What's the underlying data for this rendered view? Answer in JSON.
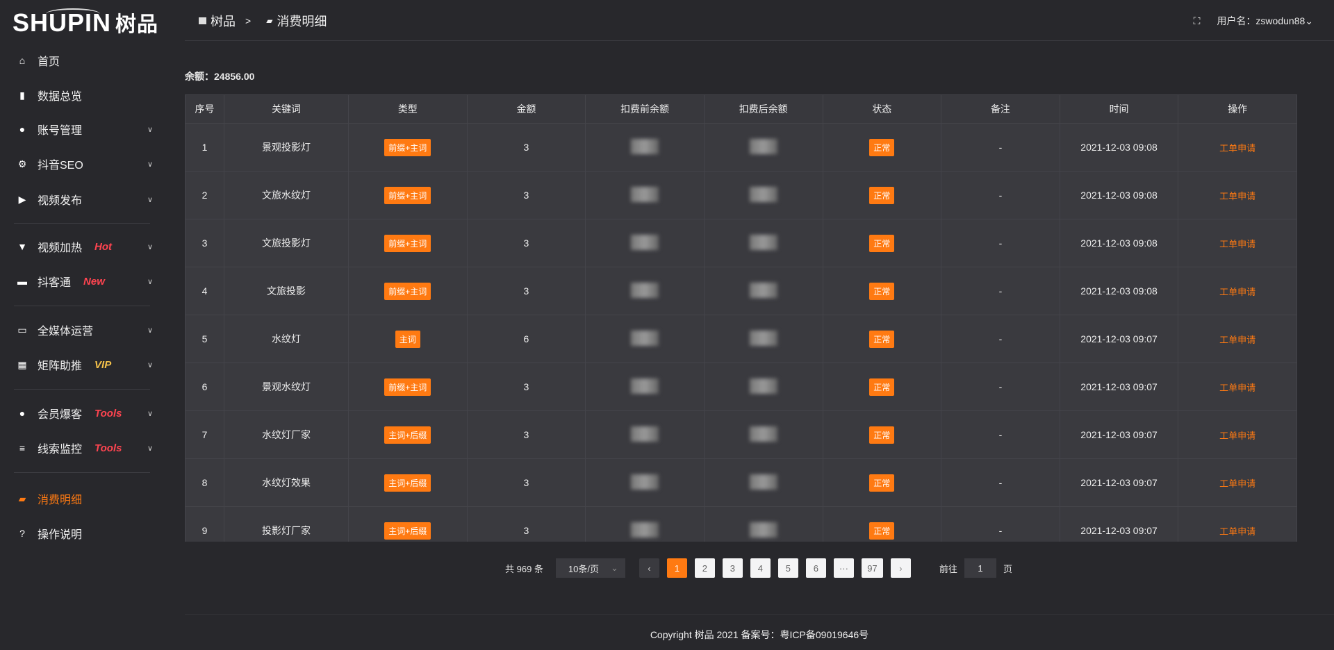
{
  "logo": {
    "text": "SHUPIN",
    "cn": "树品"
  },
  "sidebar": {
    "items": [
      {
        "label": "首页",
        "icon": "home-icon",
        "tag": "",
        "tag_color": ""
      },
      {
        "label": "数据总览",
        "icon": "bar-chart-icon",
        "tag": "",
        "tag_color": ""
      },
      {
        "label": "账号管理",
        "icon": "user-icon",
        "tag": "",
        "tag_color": ""
      },
      {
        "label": "抖音SEO",
        "icon": "gear-icon",
        "tag": "",
        "tag_color": ""
      },
      {
        "label": "视频发布",
        "icon": "video-icon",
        "tag": "",
        "tag_color": ""
      },
      {
        "label": "视频加热",
        "icon": "banner-icon",
        "tag": "Hot",
        "tag_color": "#ff4450"
      },
      {
        "label": "抖客通",
        "icon": "chat-icon",
        "tag": "New",
        "tag_color": "#ff4450"
      },
      {
        "label": "全媒体运营",
        "icon": "monitor-icon",
        "tag": "",
        "tag_color": ""
      },
      {
        "label": "矩阵助推",
        "icon": "grid-icon",
        "tag": "VIP",
        "tag_color": "#f5c24a"
      },
      {
        "label": "会员爆客",
        "icon": "user-icon",
        "tag": "Tools",
        "tag_color": "#ff4450"
      },
      {
        "label": "线索监控",
        "icon": "sliders-icon",
        "tag": "Tools",
        "tag_color": "#ff4450"
      },
      {
        "label": "消费明细",
        "icon": "wallet-icon",
        "tag": "",
        "tag_color": ""
      },
      {
        "label": "操作说明",
        "icon": "help-icon",
        "tag": "",
        "tag_color": ""
      }
    ]
  },
  "header": {
    "breadcrumb": [
      "树品",
      "消费明细"
    ],
    "breadcrumb_sep": ">",
    "username": "用户名：zswodun88"
  },
  "balance": "余额：24856.00",
  "table": {
    "columns": [
      "序号",
      "关键词",
      "类型",
      "金额",
      "扣费前余额",
      "扣费后余额",
      "状态",
      "备注",
      "时间",
      "操作"
    ],
    "rows": [
      [
        "1",
        "景观投影灯",
        "前缀+主词",
        "3",
        "",
        "",
        "正常",
        "-",
        "2021-12-03 09:08",
        "工单申请"
      ],
      [
        "2",
        "文旅水纹灯",
        "前缀+主词",
        "3",
        "",
        "",
        "正常",
        "-",
        "2021-12-03 09:08",
        "工单申请"
      ],
      [
        "3",
        "文旅投影灯",
        "前缀+主词",
        "3",
        "",
        "",
        "正常",
        "-",
        "2021-12-03 09:08",
        "工单申请"
      ],
      [
        "4",
        "文旅投影",
        "前缀+主词",
        "3",
        "",
        "",
        "正常",
        "-",
        "2021-12-03 09:08",
        "工单申请"
      ],
      [
        "5",
        "水纹灯",
        "主词",
        "6",
        "",
        "",
        "正常",
        "-",
        "2021-12-03 09:07",
        "工单申请"
      ],
      [
        "6",
        "景观水纹灯",
        "前缀+主词",
        "3",
        "",
        "",
        "正常",
        "-",
        "2021-12-03 09:07",
        "工单申请"
      ],
      [
        "7",
        "水纹灯厂家",
        "主词+后缀",
        "3",
        "",
        "",
        "正常",
        "-",
        "2021-12-03 09:07",
        "工单申请"
      ],
      [
        "8",
        "水纹灯效果",
        "主词+后缀",
        "3",
        "",
        "",
        "正常",
        "-",
        "2021-12-03 09:07",
        "工单申请"
      ],
      [
        "9",
        "投影灯厂家",
        "主词+后缀",
        "3",
        "",
        "",
        "正常",
        "-",
        "2021-12-03 09:07",
        "工单申请"
      ]
    ]
  },
  "pagination": {
    "total": "共 969 条",
    "page_size": "10条/页",
    "pages": [
      "1",
      "2",
      "3",
      "4",
      "5",
      "6",
      "···",
      "97"
    ],
    "current": "1",
    "goto_label": "前往",
    "goto_value": "1",
    "page_unit": "页"
  },
  "footer": "Copyright 树品 2021 备案号：粤ICP备09019646号",
  "colors": {
    "accent": "#ff7a12",
    "background": "#28282c",
    "table": "#3a3a3f"
  }
}
